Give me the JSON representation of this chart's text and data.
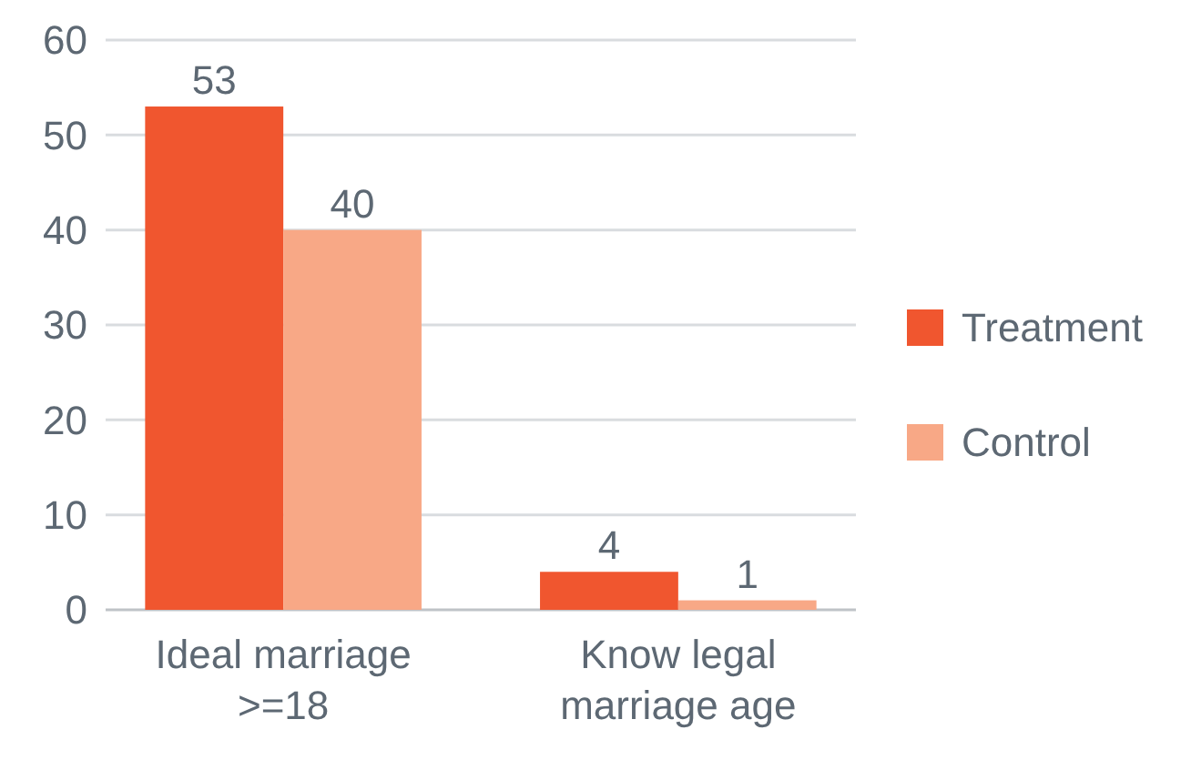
{
  "chart_data": {
    "type": "bar",
    "categories": [
      "Ideal marriage >=18",
      "Know legal marriage age"
    ],
    "series": [
      {
        "name": "Treatment",
        "color": "#f0562f",
        "values": [
          53,
          4
        ]
      },
      {
        "name": "Control",
        "color": "#f8a886",
        "values": [
          40,
          1
        ]
      }
    ],
    "ylim": [
      0,
      60
    ],
    "yticks": [
      0,
      10,
      20,
      30,
      40,
      50,
      60
    ],
    "grid": "y",
    "legend": "right",
    "data_labels": true
  }
}
